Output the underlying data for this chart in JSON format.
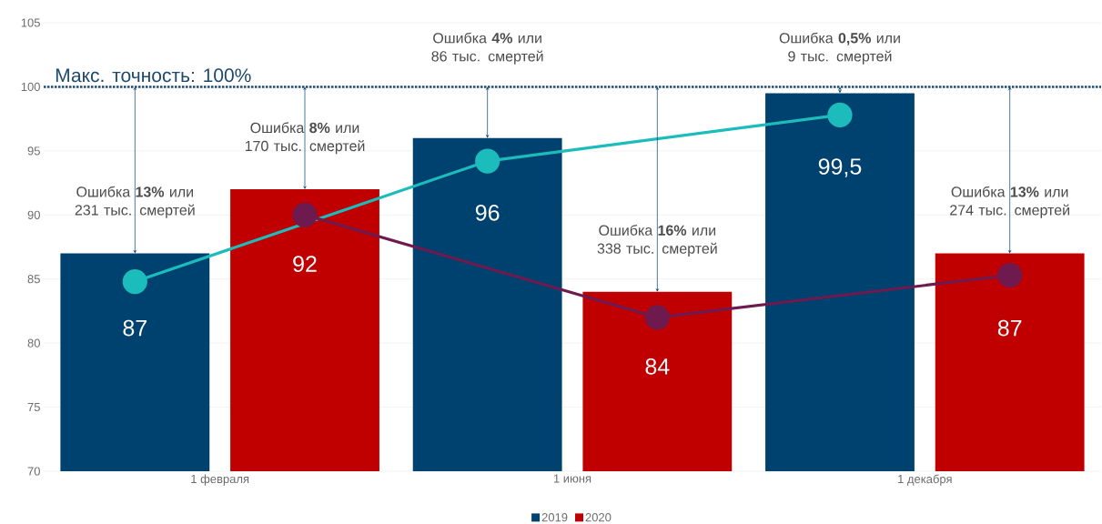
{
  "chart_data": {
    "type": "bar",
    "categories": [
      "1 февраля",
      "1 июня",
      "1 декабря"
    ],
    "series": [
      {
        "name": "2019",
        "color": "#00426f",
        "values": [
          87,
          96,
          99.5
        ],
        "value_labels": [
          "87",
          "96",
          "99,5"
        ]
      },
      {
        "name": "2020",
        "color": "#c00000",
        "values": [
          92,
          84,
          87
        ],
        "value_labels": [
          "92",
          "84",
          "87"
        ]
      },
      {
        "type": "line",
        "color": "#1cbcbc",
        "values": [
          84.8,
          94.2,
          97.8
        ]
      },
      {
        "type": "line",
        "color": "#6e1a4f",
        "values": [
          90,
          82,
          85.3
        ]
      }
    ],
    "ylim": [
      70,
      105
    ],
    "yticks": [
      70,
      75,
      80,
      85,
      90,
      95,
      100,
      105
    ],
    "grid": "y",
    "legend": "bottom",
    "marker": "circle",
    "line_style": "solid",
    "ref_lines": [
      {
        "axis": "y",
        "value": 100,
        "label": "Макс. точность: 100%",
        "color": "#1e4a6e",
        "line_style": "dotted"
      }
    ],
    "annotations": [
      "Ошибка **13%** или 231 тыс. смертей",
      "Ошибка **8%** или 170 тыс. смертей",
      "Ошибка **4%** или 86 тыс. смертей",
      "Ошибка **16%** или 338 тыс. смертей",
      "Ошибка **0,5%** или 9 тыс. смертей",
      "Ошибка **13%** или 274 тыс. смертей"
    ]
  }
}
